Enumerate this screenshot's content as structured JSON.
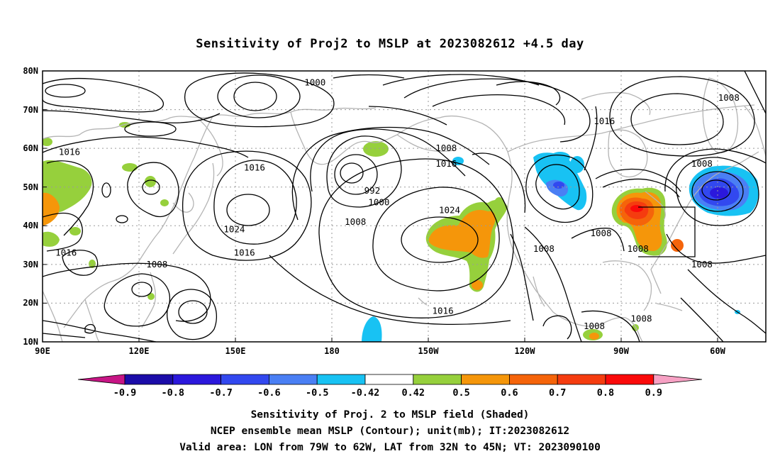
{
  "title": "Sensitivity of Proj2 to MSLP at 2023082612 +4.5 day",
  "map": {
    "lat_ticks": [
      "80N",
      "70N",
      "60N",
      "50N",
      "40N",
      "30N",
      "20N",
      "10N"
    ],
    "lon_ticks": [
      "90E",
      "120E",
      "150E",
      "180",
      "150W",
      "120W",
      "90W",
      "60W"
    ],
    "grid": "dotted",
    "coastline_color": "#b4b4b4",
    "contour_color": "#000000"
  },
  "contour_labels": [
    {
      "text": "1000",
      "lon": 171,
      "lat": 77
    },
    {
      "text": "1008",
      "lon": -66,
      "lat": 73
    },
    {
      "text": "1016",
      "lon": -103,
      "lat": 67
    },
    {
      "text": "1016",
      "lon": 98,
      "lat": 59
    },
    {
      "text": "1008",
      "lon": -150,
      "lat": 60
    },
    {
      "text": "1016",
      "lon": -150,
      "lat": 56
    },
    {
      "text": "1016",
      "lon": 153,
      "lat": 55
    },
    {
      "text": "1008",
      "lon": -74,
      "lat": 56
    },
    {
      "text": "992",
      "lon": 188,
      "lat": 49
    },
    {
      "text": "1000",
      "lon": 190,
      "lat": 46
    },
    {
      "text": "1024",
      "lon": -149,
      "lat": 44
    },
    {
      "text": "1008",
      "lon": 183,
      "lat": 41
    },
    {
      "text": "1024",
      "lon": 147,
      "lat": 39
    },
    {
      "text": "1008",
      "lon": -104,
      "lat": 38
    },
    {
      "text": "1008",
      "lon": -121,
      "lat": 34
    },
    {
      "text": "1008",
      "lon": -93,
      "lat": 34
    },
    {
      "text": "1016",
      "lon": 97,
      "lat": 33
    },
    {
      "text": "1016",
      "lon": 150,
      "lat": 33
    },
    {
      "text": "1008",
      "lon": -74,
      "lat": 30
    },
    {
      "text": "1008",
      "lon": 124,
      "lat": 30
    },
    {
      "text": "1016",
      "lon": -151,
      "lat": 18
    },
    {
      "text": "1008",
      "lon": -92,
      "lat": 16
    },
    {
      "text": "1008",
      "lon": -106,
      "lat": 14
    }
  ],
  "colorbar": {
    "labels": [
      "-0.9",
      "-0.8",
      "-0.7",
      "-0.6",
      "-0.5",
      "-0.42",
      "0.42",
      "0.5",
      "0.6",
      "0.7",
      "0.8",
      "0.9"
    ],
    "colors": [
      "#1b0ca8",
      "#2b18dc",
      "#3248ef",
      "#4a7ff4",
      "#18c2f3",
      "#ffffff",
      "#96d03c",
      "#f5960a",
      "#f5640a",
      "#f53c0f",
      "#fa0a0a"
    ],
    "low_end_color": "#c71585",
    "high_end_color": "#f7a1c4"
  },
  "footer": [
    "Sensitivity of Proj. 2 to MSLP field (Shaded)",
    "NCEP ensemble mean MSLP (Contour); unit(mb); IT:2023082612",
    "Valid area: LON from 79W to 62W, LAT from 32N to 45N; VT: 2023090100"
  ],
  "valid_area": {
    "lon": [
      "79W",
      "62W"
    ],
    "lat": [
      "32N",
      "45N"
    ]
  }
}
